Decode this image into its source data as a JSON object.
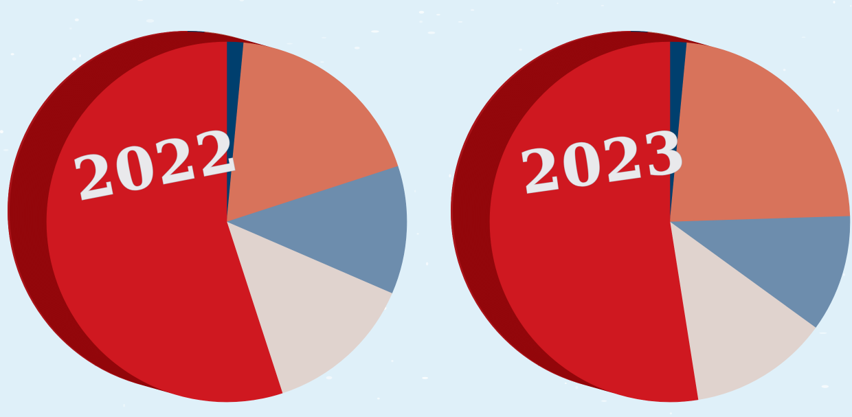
{
  "colors": {
    "background": "#dff0f9",
    "side_shade": "#93070b",
    "side_rib": "#6e0508",
    "top_edge": "#a70d13"
  },
  "chart_data": [
    {
      "type": "pie",
      "title": "2022",
      "slices": [
        {
          "value": 1.5,
          "color": "#003f6e"
        },
        {
          "value": 18.5,
          "color": "#d8735b"
        },
        {
          "value": 11.5,
          "color": "#6d8dad"
        },
        {
          "value": 13.5,
          "color": "#e0d3ce"
        },
        {
          "value": 55.0,
          "color": "#cf1820"
        }
      ]
    },
    {
      "type": "pie",
      "title": "2023",
      "slices": [
        {
          "value": 1.5,
          "color": "#003f6e"
        },
        {
          "value": 23.0,
          "color": "#d8735b"
        },
        {
          "value": 10.5,
          "color": "#6d8dad"
        },
        {
          "value": 12.5,
          "color": "#e0d3ce"
        },
        {
          "value": 52.5,
          "color": "#cf1820"
        }
      ]
    }
  ]
}
